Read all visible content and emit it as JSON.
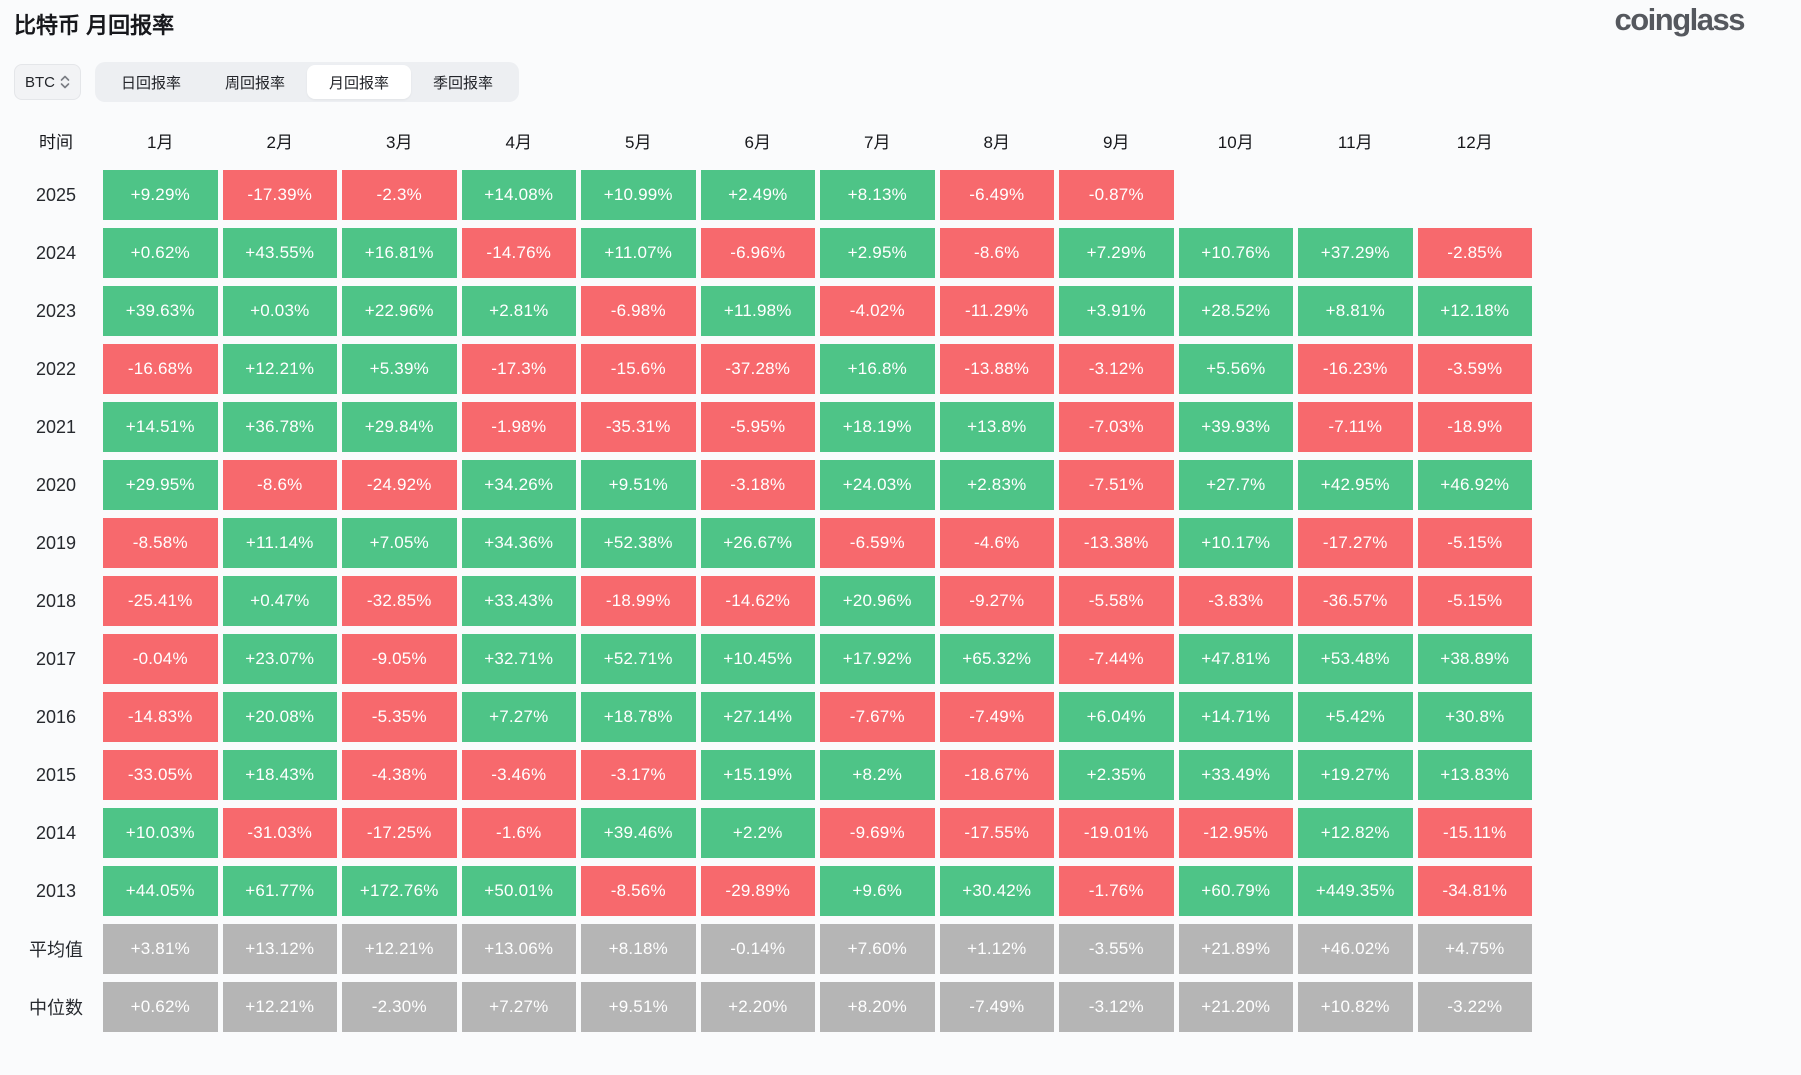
{
  "header": {
    "title": "比特币 月回报率",
    "logo": "coinglass"
  },
  "controls": {
    "coin": "BTC",
    "tabs": [
      {
        "label": "日回报率",
        "active": false
      },
      {
        "label": "周回报率",
        "active": false
      },
      {
        "label": "月回报率",
        "active": true
      },
      {
        "label": "季回报率",
        "active": false
      }
    ]
  },
  "colors": {
    "positive": "#4EC487",
    "negative": "#F7696D",
    "summary": "#B5B5B5"
  },
  "table": {
    "time_header": "时间",
    "month_headers": [
      "1月",
      "2月",
      "3月",
      "4月",
      "5月",
      "6月",
      "7月",
      "8月",
      "9月",
      "10月",
      "11月",
      "12月"
    ],
    "rows": [
      {
        "label": "2025",
        "summary": false,
        "cells": [
          "+9.29%",
          "-17.39%",
          "-2.3%",
          "+14.08%",
          "+10.99%",
          "+2.49%",
          "+8.13%",
          "-6.49%",
          "-0.87%",
          null,
          null,
          null
        ]
      },
      {
        "label": "2024",
        "summary": false,
        "cells": [
          "+0.62%",
          "+43.55%",
          "+16.81%",
          "-14.76%",
          "+11.07%",
          "-6.96%",
          "+2.95%",
          "-8.6%",
          "+7.29%",
          "+10.76%",
          "+37.29%",
          "-2.85%"
        ]
      },
      {
        "label": "2023",
        "summary": false,
        "cells": [
          "+39.63%",
          "+0.03%",
          "+22.96%",
          "+2.81%",
          "-6.98%",
          "+11.98%",
          "-4.02%",
          "-11.29%",
          "+3.91%",
          "+28.52%",
          "+8.81%",
          "+12.18%"
        ]
      },
      {
        "label": "2022",
        "summary": false,
        "cells": [
          "-16.68%",
          "+12.21%",
          "+5.39%",
          "-17.3%",
          "-15.6%",
          "-37.28%",
          "+16.8%",
          "-13.88%",
          "-3.12%",
          "+5.56%",
          "-16.23%",
          "-3.59%"
        ]
      },
      {
        "label": "2021",
        "summary": false,
        "cells": [
          "+14.51%",
          "+36.78%",
          "+29.84%",
          "-1.98%",
          "-35.31%",
          "-5.95%",
          "+18.19%",
          "+13.8%",
          "-7.03%",
          "+39.93%",
          "-7.11%",
          "-18.9%"
        ]
      },
      {
        "label": "2020",
        "summary": false,
        "cells": [
          "+29.95%",
          "-8.6%",
          "-24.92%",
          "+34.26%",
          "+9.51%",
          "-3.18%",
          "+24.03%",
          "+2.83%",
          "-7.51%",
          "+27.7%",
          "+42.95%",
          "+46.92%"
        ]
      },
      {
        "label": "2019",
        "summary": false,
        "cells": [
          "-8.58%",
          "+11.14%",
          "+7.05%",
          "+34.36%",
          "+52.38%",
          "+26.67%",
          "-6.59%",
          "-4.6%",
          "-13.38%",
          "+10.17%",
          "-17.27%",
          "-5.15%"
        ]
      },
      {
        "label": "2018",
        "summary": false,
        "cells": [
          "-25.41%",
          "+0.47%",
          "-32.85%",
          "+33.43%",
          "-18.99%",
          "-14.62%",
          "+20.96%",
          "-9.27%",
          "-5.58%",
          "-3.83%",
          "-36.57%",
          "-5.15%"
        ]
      },
      {
        "label": "2017",
        "summary": false,
        "cells": [
          "-0.04%",
          "+23.07%",
          "-9.05%",
          "+32.71%",
          "+52.71%",
          "+10.45%",
          "+17.92%",
          "+65.32%",
          "-7.44%",
          "+47.81%",
          "+53.48%",
          "+38.89%"
        ]
      },
      {
        "label": "2016",
        "summary": false,
        "cells": [
          "-14.83%",
          "+20.08%",
          "-5.35%",
          "+7.27%",
          "+18.78%",
          "+27.14%",
          "-7.67%",
          "-7.49%",
          "+6.04%",
          "+14.71%",
          "+5.42%",
          "+30.8%"
        ]
      },
      {
        "label": "2015",
        "summary": false,
        "cells": [
          "-33.05%",
          "+18.43%",
          "-4.38%",
          "-3.46%",
          "-3.17%",
          "+15.19%",
          "+8.2%",
          "-18.67%",
          "+2.35%",
          "+33.49%",
          "+19.27%",
          "+13.83%"
        ]
      },
      {
        "label": "2014",
        "summary": false,
        "cells": [
          "+10.03%",
          "-31.03%",
          "-17.25%",
          "-1.6%",
          "+39.46%",
          "+2.2%",
          "-9.69%",
          "-17.55%",
          "-19.01%",
          "-12.95%",
          "+12.82%",
          "-15.11%"
        ]
      },
      {
        "label": "2013",
        "summary": false,
        "cells": [
          "+44.05%",
          "+61.77%",
          "+172.76%",
          "+50.01%",
          "-8.56%",
          "-29.89%",
          "+9.6%",
          "+30.42%",
          "-1.76%",
          "+60.79%",
          "+449.35%",
          "-34.81%"
        ]
      },
      {
        "label": "平均值",
        "summary": true,
        "cells": [
          "+3.81%",
          "+13.12%",
          "+12.21%",
          "+13.06%",
          "+8.18%",
          "-0.14%",
          "+7.60%",
          "+1.12%",
          "-3.55%",
          "+21.89%",
          "+46.02%",
          "+4.75%"
        ]
      },
      {
        "label": "中位数",
        "summary": true,
        "cells": [
          "+0.62%",
          "+12.21%",
          "-2.30%",
          "+7.27%",
          "+9.51%",
          "+2.20%",
          "+8.20%",
          "-7.49%",
          "-3.12%",
          "+21.20%",
          "+10.82%",
          "-3.22%"
        ]
      }
    ]
  }
}
